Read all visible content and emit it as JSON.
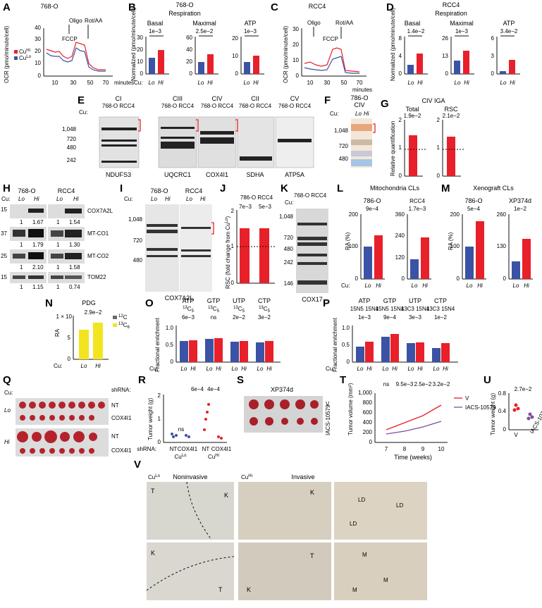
{
  "panels": {
    "A": {
      "letter": "A",
      "title": "768-O",
      "xticks": [
        "10",
        "30",
        "50",
        "70"
      ],
      "xunit": "minutes",
      "ylabel": "OCR (pmo/minute/cell)",
      "yticks": [
        "0",
        "10",
        "20",
        "30",
        "40"
      ],
      "ann": [
        "Oligo",
        "FCCP",
        "Rot/AA"
      ],
      "legend": [
        "Cu",
        "Cu"
      ],
      "legend_sup": [
        "Hi",
        "Lo"
      ]
    },
    "B": {
      "letter": "B",
      "title": "768-O",
      "subtitle": "Respiration",
      "ylabel": "Normalized (pmo/minute/cell)",
      "sub": [
        {
          "name": "Basal",
          "p": "1e−3",
          "yticks": [
            "0",
            "10",
            "20",
            "30"
          ]
        },
        {
          "name": "Maximal",
          "p": "2.5e−2",
          "yticks": [
            "0",
            "20",
            "40",
            "60"
          ]
        },
        {
          "name": "ATP",
          "p": "1e−3",
          "yticks": [
            "0",
            "10",
            "20"
          ]
        }
      ]
    },
    "C": {
      "letter": "C",
      "title": "RCC4",
      "ylabel": "OCR (pmo/minute/cell)",
      "yticks": [
        "0",
        "10",
        "20",
        "30"
      ],
      "xticks": [
        "10",
        "30",
        "50",
        "70"
      ],
      "xunit": "minutes",
      "ann": [
        "Oligo",
        "FCCP",
        "Rot/AA"
      ]
    },
    "D": {
      "letter": "D",
      "title": "RCC4",
      "subtitle": "Respiration",
      "ylabel": "Normalized (pmo/minute/cell)",
      "sub": [
        {
          "name": "Basal",
          "p": "1.4e−2",
          "yticks": [
            "0",
            "4",
            "8"
          ]
        },
        {
          "name": "Maximal",
          "p": "1e−3",
          "yticks": [
            "0",
            "13",
            "26"
          ]
        },
        {
          "name": "ATP",
          "p": "3.4e−2",
          "yticks": [
            "0",
            "3",
            "6"
          ]
        }
      ]
    },
    "E": {
      "letter": "E",
      "complexes": [
        "CI",
        "CIII",
        "CIV",
        "CII",
        "CV"
      ],
      "cells": "768-O RCC4",
      "markers": [
        "1,048",
        "720",
        "480",
        "242"
      ],
      "antibodies": [
        "NDUFS3",
        "UQCRC1",
        "COX4I1",
        "SDHA",
        "ATP5A"
      ]
    },
    "F": {
      "letter": "F",
      "title": "786-O",
      "sub": "CIV",
      "markers": [
        "1,048",
        "720",
        "480"
      ]
    },
    "G": {
      "letter": "G",
      "title": "CIV IGA",
      "groups": [
        {
          "name": "Total",
          "p": "1.9e−2"
        },
        {
          "name": "RSC",
          "p": "2.1e−2"
        }
      ],
      "ylabel": "Relative quantification",
      "yticks": [
        "0",
        "1",
        "2"
      ]
    },
    "H": {
      "letter": "H",
      "cells": [
        "768-O",
        "RCC4"
      ],
      "mw": [
        "15",
        "37",
        "25",
        "15"
      ],
      "proteins": [
        "COX7A2L",
        "MT-CO1",
        "MT-CO2",
        "TOM22"
      ],
      "quant": [
        [
          "1",
          "1.67",
          "1",
          "1.54"
        ],
        [
          "1",
          "1.79",
          "1",
          "1.30"
        ],
        [
          "1",
          "2.10",
          "1",
          "1.58"
        ],
        [
          "1",
          "1.15",
          "1",
          "0.74"
        ]
      ]
    },
    "I": {
      "letter": "I",
      "cells": [
        "768-O",
        "RCC4"
      ],
      "markers": [
        "1,048",
        "720",
        "480"
      ],
      "antibody": "COX7A2L"
    },
    "J": {
      "letter": "J",
      "title": "786-O RCC4",
      "p": [
        "7e−3",
        "5e−3"
      ],
      "ylabel": "RSC (fold change from Cu",
      "ylabel_sup": "Lo",
      "ylabel_end": ")",
      "yticks": [
        "0",
        "1",
        "2"
      ]
    },
    "K": {
      "letter": "K",
      "cells": "768-O RCC4",
      "markers": [
        "1,048",
        "720",
        "480",
        "242",
        "146"
      ],
      "antibody": "COX17"
    },
    "L": {
      "letter": "L",
      "title": "Mitochondria CLs",
      "sub": [
        {
          "name": "786-O",
          "p": "9e−4",
          "yticks": [
            "0",
            "100",
            "200"
          ]
        },
        {
          "name": "RCC4",
          "p": "1.7e−3",
          "yticks": [
            "0",
            "120",
            "240",
            "360"
          ]
        }
      ],
      "ylabel": "RA (%)"
    },
    "M": {
      "letter": "M",
      "title": "Xenograft CLs",
      "sub": [
        {
          "name": "786-O",
          "p": "5e−4",
          "yticks": [
            "0",
            "100",
            "200"
          ]
        },
        {
          "name": "XP374d",
          "p": "1e−2",
          "yticks": [
            "0",
            "130",
            "260"
          ]
        }
      ],
      "ylabel": "RA (%)"
    },
    "N": {
      "letter": "N",
      "title": "PDG",
      "p": "2.9e−2",
      "ylabel": "RA",
      "yticks": [
        "0",
        "5",
        "1 × 10"
      ],
      "legend": [
        "C",
        "C"
      ],
      "legend_sup": [
        "12",
        "13"
      ],
      "legend_sub": [
        "",
        "6"
      ]
    },
    "O": {
      "letter": "O",
      "ylabel": "Fractional enrichment",
      "yticks": [
        "0",
        "0.5",
        "1.0"
      ],
      "groups": [
        {
          "name": "ATP",
          "label": "C",
          "sup": "13",
          "sub": "5",
          "p": "6e−3"
        },
        {
          "name": "GTP",
          "label": "C",
          "sup": "13",
          "sub": "5",
          "p": "ns"
        },
        {
          "name": "UTP",
          "label": "C",
          "sup": "13",
          "sub": "5",
          "p": "2e−2"
        },
        {
          "name": "CTP",
          "label": "C",
          "sup": "13",
          "sub": "5",
          "p": "3e−2"
        }
      ]
    },
    "P": {
      "letter": "P",
      "ylabel": "Fractional enrichment",
      "yticks": [
        "0",
        "0.5",
        "1.0"
      ],
      "groups": [
        {
          "name": "ATP",
          "label": "15N5 15N4",
          "p": "1e−3"
        },
        {
          "name": "GTP",
          "label": "15N5 15N4",
          "p": "9e−4"
        },
        {
          "name": "UTP",
          "label": "13C3 15N4",
          "p": "3e−3"
        },
        {
          "name": "CTP",
          "label": "13C3 15N4",
          "p": "1e−2"
        }
      ]
    },
    "Q": {
      "letter": "Q",
      "cu": "Cu:",
      "shrna": "shRNA:",
      "rows": [
        "NT",
        "COX4I1",
        "NT",
        "COX4I1"
      ],
      "conds": [
        "Lo",
        "Hi"
      ]
    },
    "R": {
      "letter": "R",
      "ylabel": "Tumor weight (g)",
      "yticks": [
        "0",
        "1",
        "2"
      ],
      "p": [
        "ns",
        "6e−4",
        "4e−4"
      ],
      "shrna": "shRNA:",
      "xlabels": [
        "NT",
        "COX4I1",
        "NT",
        "COX4I1"
      ],
      "groups": [
        "Cu",
        "Cu"
      ],
      "groups_sup": [
        "Lo",
        "Hi"
      ]
    },
    "S": {
      "letter": "S",
      "title": "XP374d",
      "rows": [
        "V",
        "IACS-10579"
      ]
    },
    "T": {
      "letter": "T",
      "ylabel": "Tumor volume (mm³)",
      "yticks": [
        "0",
        "200",
        "400",
        "600",
        "800",
        "1,000"
      ],
      "xticks": [
        "7",
        "8",
        "9",
        "10"
      ],
      "xlabel": "Time (weeks)",
      "p": [
        "ns",
        "9.5e−3",
        "2.5e−2",
        "3.2e−2"
      ],
      "legend": [
        "V",
        "IACS-10579"
      ]
    },
    "U": {
      "letter": "U",
      "ylabel": "Tumor weight (g)",
      "yticks": [
        "0",
        "0.4",
        "0.8"
      ],
      "p": "2.7e−2",
      "xlabels": [
        "V",
        "IACS-10759"
      ]
    },
    "V": {
      "letter": "V",
      "cond_lo": "Cu",
      "cond_lo_sup": "Lo",
      "cond_hi": "Cu",
      "cond_hi_sup": "Hi",
      "noninv": "Noninvasive",
      "inv": "Invasive",
      "markers": [
        "LD",
        "M"
      ],
      "tissue": [
        "T",
        "K"
      ]
    }
  },
  "cu_label": "Cu:",
  "lo": "Lo",
  "hi": "Hi",
  "colors": {
    "hi": "#e8202a",
    "lo": "#3b53a4",
    "c13": "#f2e51f",
    "c12": "#6c6c6c"
  }
}
